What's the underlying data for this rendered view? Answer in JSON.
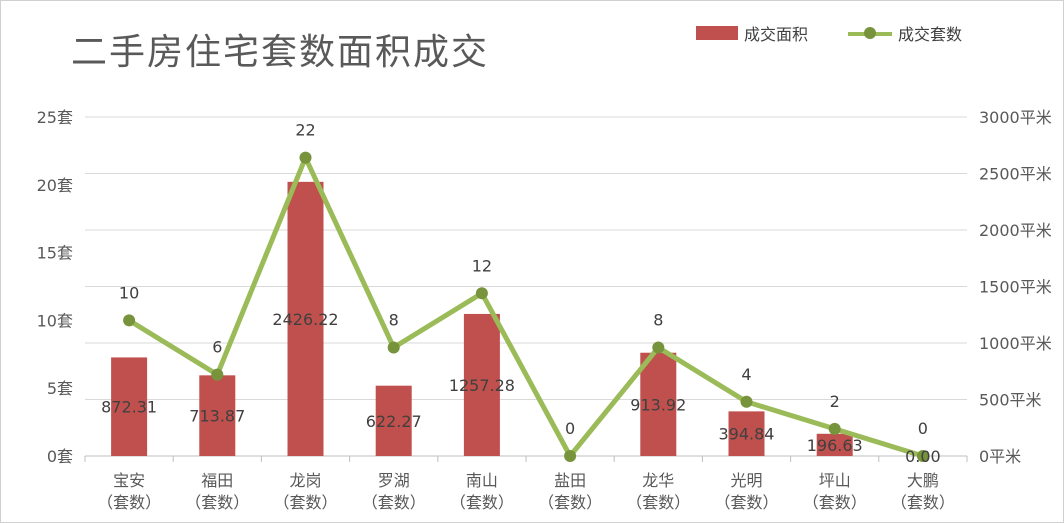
{
  "chart_data": {
    "type": "bar+line",
    "title": "二手房住宅套数面积成交",
    "categories": [
      "宝安\n（套数）",
      "福田\n（套数）",
      "龙岗\n（套数）",
      "罗湖\n（套数）",
      "南山\n（套数）",
      "盐田\n（套数）",
      "龙华\n（套数）",
      "光明\n（套数）",
      "坪山\n（套数）",
      "大鹏\n（套数）"
    ],
    "series": [
      {
        "name": "成交面积",
        "type": "bar",
        "axis": "right",
        "values": [
          872.31,
          713.87,
          2426.22,
          622.27,
          1257.28,
          0,
          913.92,
          394.84,
          196.63,
          0
        ],
        "labels": [
          "872.31",
          "713.87",
          "2426.22",
          "622.27",
          "1257.28",
          "",
          "913.92",
          "394.84",
          "196.63",
          "0.00"
        ],
        "color": "#c0504d"
      },
      {
        "name": "成交套数",
        "type": "line",
        "axis": "left",
        "values": [
          10,
          6,
          22,
          8,
          12,
          0,
          8,
          4,
          2,
          0
        ],
        "labels": [
          "10",
          "6",
          "22",
          "8",
          "12",
          "0",
          "8",
          "4",
          "2",
          "0"
        ],
        "color": "#9bbb59",
        "marker_color": "#77933c"
      }
    ],
    "y_left": {
      "min": 0,
      "max": 25,
      "ticks": [
        "0套",
        "5套",
        "10套",
        "15套",
        "20套",
        "25套"
      ]
    },
    "y_right": {
      "min": 0,
      "max": 3000,
      "ticks": [
        "0平米",
        "500平米",
        "1000平米",
        "1500平米",
        "2000平米",
        "2500平米",
        "3000平米"
      ]
    },
    "grid": true,
    "legend_position": "top-right"
  }
}
